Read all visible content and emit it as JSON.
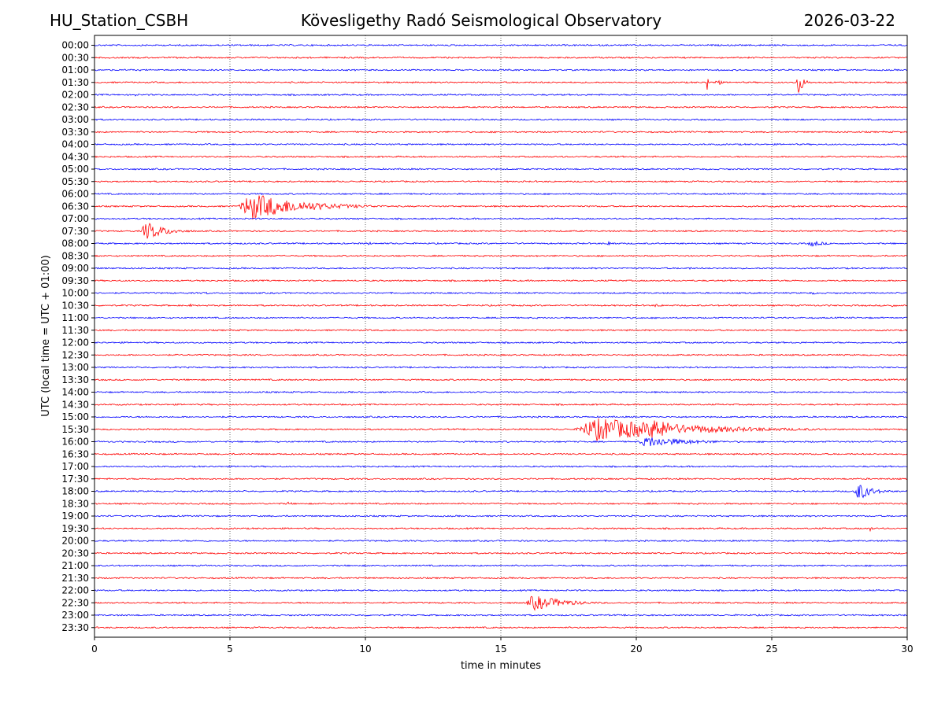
{
  "header": {
    "station": "HU_Station_CSBH",
    "title": "Kövesligethy Radó Seismological Observatory",
    "date": "2026-03-22"
  },
  "chart_data": {
    "type": "line",
    "title": "Kövesligethy Radó Seismological Observatory",
    "xlabel": "time in minutes",
    "ylabel": "UTC (local time = UTC + 01:00)",
    "xlim": [
      0,
      30
    ],
    "x_ticks": [
      0,
      5,
      10,
      15,
      20,
      25,
      30
    ],
    "x_tick_labels": [
      "0",
      "5",
      "10",
      "15",
      "20",
      "25",
      "30"
    ],
    "grid_vertical": [
      5,
      10,
      15,
      20,
      25
    ],
    "trace_colors": [
      "#0000ff",
      "#ff0000"
    ],
    "rows": [
      "00:00",
      "00:30",
      "01:00",
      "01:30",
      "02:00",
      "02:30",
      "03:00",
      "03:30",
      "04:00",
      "04:30",
      "05:00",
      "05:30",
      "06:00",
      "06:30",
      "07:00",
      "07:30",
      "08:00",
      "08:30",
      "09:00",
      "09:30",
      "10:00",
      "10:30",
      "11:00",
      "11:30",
      "12:00",
      "12:30",
      "13:00",
      "13:30",
      "14:00",
      "14:30",
      "15:00",
      "15:30",
      "16:00",
      "16:30",
      "17:00",
      "17:30",
      "18:00",
      "18:30",
      "19:00",
      "19:30",
      "20:00",
      "20:30",
      "21:00",
      "21:30",
      "22:00",
      "22:30",
      "23:00",
      "23:30"
    ],
    "events": [
      {
        "row": "01:30",
        "start": 22.6,
        "end": 22.8,
        "amplitude": 12
      },
      {
        "row": "01:30",
        "start": 22.9,
        "end": 23.3,
        "amplitude": 9
      },
      {
        "row": "01:30",
        "start": 25.9,
        "end": 26.5,
        "amplitude": 18
      },
      {
        "row": "02:00",
        "start": 1.5,
        "end": 1.7,
        "amplitude": 3
      },
      {
        "row": "06:30",
        "start": 5.3,
        "end": 11.0,
        "amplitude": 18
      },
      {
        "row": "07:30",
        "start": 1.7,
        "end": 4.0,
        "amplitude": 12
      },
      {
        "row": "08:00",
        "start": 5.0,
        "end": 5.6,
        "amplitude": 2
      },
      {
        "row": "08:00",
        "start": 10.1,
        "end": 10.4,
        "amplitude": 3
      },
      {
        "row": "08:00",
        "start": 18.9,
        "end": 19.8,
        "amplitude": 3
      },
      {
        "row": "08:00",
        "start": 26.3,
        "end": 28.0,
        "amplitude": 4
      },
      {
        "row": "09:00",
        "start": 21.9,
        "end": 22.3,
        "amplitude": 2
      },
      {
        "row": "10:00",
        "start": 4.0,
        "end": 4.9,
        "amplitude": 2
      },
      {
        "row": "10:00",
        "start": 26.4,
        "end": 27.3,
        "amplitude": 2
      },
      {
        "row": "10:30",
        "start": 3.5,
        "end": 3.9,
        "amplitude": 2
      },
      {
        "row": "10:30",
        "start": 20.6,
        "end": 22.0,
        "amplitude": 2
      },
      {
        "row": "10:30",
        "start": 23.4,
        "end": 23.8,
        "amplitude": 2
      },
      {
        "row": "10:30",
        "start": 27.0,
        "end": 27.2,
        "amplitude": 2
      },
      {
        "row": "10:30",
        "start": 29.4,
        "end": 29.9,
        "amplitude": 3
      },
      {
        "row": "11:00",
        "start": 22.8,
        "end": 23.2,
        "amplitude": 2
      },
      {
        "row": "11:30",
        "start": 1.6,
        "end": 2.3,
        "amplitude": 2
      },
      {
        "row": "15:30",
        "start": 17.7,
        "end": 28.0,
        "amplitude": 15
      },
      {
        "row": "15:30",
        "start": 20.3,
        "end": 24.0,
        "amplitude": 14
      },
      {
        "row": "16:00",
        "start": 20.0,
        "end": 25.0,
        "amplitude": 7
      },
      {
        "row": "18:00",
        "start": 28.0,
        "end": 29.6,
        "amplitude": 13
      },
      {
        "row": "18:30",
        "start": 7.1,
        "end": 7.6,
        "amplitude": 3
      },
      {
        "row": "19:00",
        "start": 19.8,
        "end": 20.0,
        "amplitude": 3
      },
      {
        "row": "19:30",
        "start": 28.6,
        "end": 28.8,
        "amplitude": 7
      },
      {
        "row": "20:00",
        "start": 4.1,
        "end": 4.3,
        "amplitude": 4
      },
      {
        "row": "20:00",
        "start": 27.1,
        "end": 27.4,
        "amplitude": 2
      },
      {
        "row": "22:30",
        "start": 15.9,
        "end": 19.5,
        "amplitude": 10
      }
    ]
  }
}
